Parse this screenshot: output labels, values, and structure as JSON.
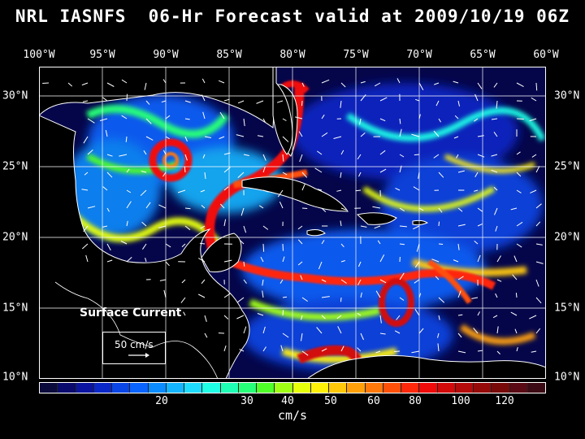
{
  "title": "NRL IASNFS  06-Hr Forecast valid at 2009/10/19 06Z",
  "lon_labels": [
    "100°W",
    "95°W",
    "90°W",
    "85°W",
    "80°W",
    "75°W",
    "70°W",
    "65°W",
    "60°W"
  ],
  "lat_labels": [
    "30°N",
    "25°N",
    "20°N",
    "15°N",
    "10°N"
  ],
  "legend": {
    "title": "Surface Current",
    "reference_label": "50 cm/s"
  },
  "colorbar": {
    "ticks": [
      "20",
      "30",
      "40",
      "50",
      "60",
      "80",
      "100",
      "120"
    ],
    "unit": "cm/s",
    "colors": [
      "#0a0a3c",
      "#0a0a6e",
      "#0a14a0",
      "#0a28c8",
      "#0a46e6",
      "#0a64ff",
      "#0a8cff",
      "#14b4ff",
      "#1edcff",
      "#1effe6",
      "#1effb4",
      "#28ff78",
      "#50ff28",
      "#a0ff14",
      "#e6ff0a",
      "#fff00a",
      "#ffc80a",
      "#ffa00a",
      "#ff780a",
      "#ff500a",
      "#ff280a",
      "#f00a0a",
      "#d20a0a",
      "#b40a0a",
      "#960a0a",
      "#780a0a",
      "#5a0a14",
      "#3c0a14"
    ]
  },
  "field_colors": {
    "ocean_deep": "#05064a",
    "land": "#000000",
    "coast": "#ffffff",
    "gridline": "#ffffff",
    "vector": "#ffffff"
  }
}
